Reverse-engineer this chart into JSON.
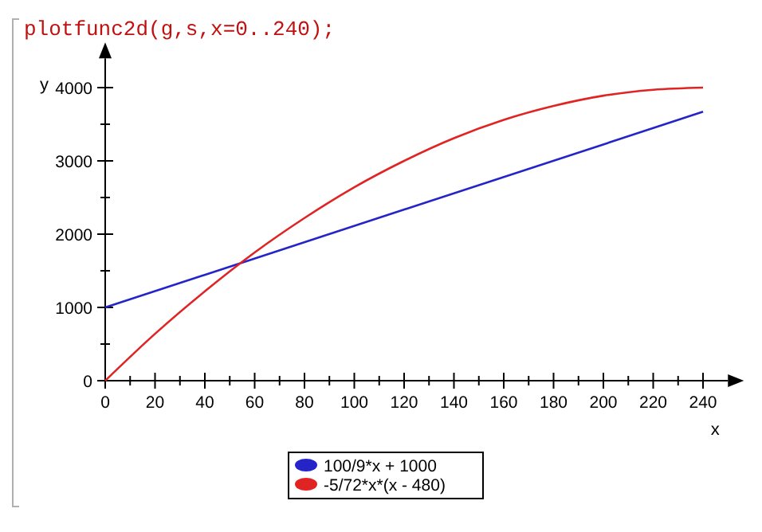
{
  "chart_data": {
    "type": "line",
    "title": "plotfunc2d(g,s,x=0..240);",
    "xlabel": "x",
    "ylabel": "y",
    "xlim": [
      0,
      250
    ],
    "ylim": [
      0,
      4400
    ],
    "xticks": [
      0,
      {
        "value": 10,
        "label": null
      },
      20,
      {
        "value": 30,
        "label": null
      },
      40,
      {
        "value": 50,
        "label": null
      },
      60,
      {
        "value": 70,
        "label": null
      },
      80,
      {
        "value": 90,
        "label": null
      },
      100,
      {
        "value": 110,
        "label": null
      },
      120,
      {
        "value": 130,
        "label": null
      },
      140,
      {
        "value": 150,
        "label": null
      },
      160,
      {
        "value": 170,
        "label": null
      },
      180,
      {
        "value": 190,
        "label": null
      },
      200,
      {
        "value": 210,
        "label": null
      },
      220,
      {
        "value": 230,
        "label": null
      },
      240
    ],
    "yticks": [
      0,
      {
        "value": 500,
        "label": null
      },
      1000,
      {
        "value": 1500,
        "label": null
      },
      2000,
      {
        "value": 2500,
        "label": null
      },
      3000,
      {
        "value": 3500,
        "label": null
      },
      4000
    ],
    "series": [
      {
        "name": "100/9*x + 1000",
        "color": "#2424c8",
        "x": [
          0,
          240
        ],
        "values": [
          1000,
          3670
        ]
      },
      {
        "name": "-5/72*x*(x - 480)",
        "color": "#e02424",
        "x": [
          0,
          20,
          40,
          60,
          80,
          100,
          120,
          140,
          160,
          180,
          200,
          220,
          240
        ],
        "values": [
          0,
          640,
          1220,
          1750,
          2220,
          2640,
          3000,
          3310,
          3560,
          3750,
          3890,
          3970,
          4000
        ]
      }
    ],
    "legend": "bottom",
    "grid": false,
    "line_style": "solid",
    "marker": "none"
  }
}
